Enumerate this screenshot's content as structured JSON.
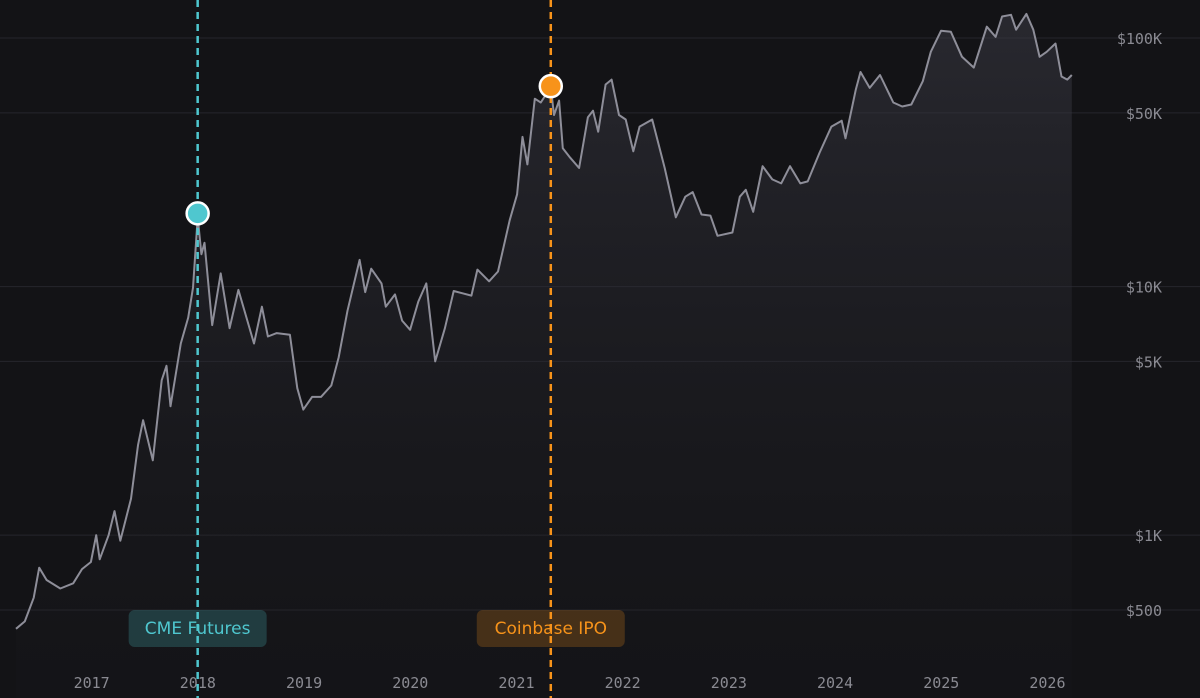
{
  "chart_data": {
    "type": "line",
    "title": "",
    "xlabel": "",
    "ylabel": "",
    "scale": "log",
    "grid": true,
    "ylim": [
      350,
      140000
    ],
    "xlim": [
      "2016-04",
      "2026-04"
    ],
    "x_ticks": [
      "2017",
      "2018",
      "2019",
      "2020",
      "2021",
      "2022",
      "2023",
      "2024",
      "2025",
      "2026"
    ],
    "y_ticks": [
      {
        "value": 500,
        "label": "$500"
      },
      {
        "value": 1000,
        "label": "$1K"
      },
      {
        "value": 5000,
        "label": "$5K"
      },
      {
        "value": 10000,
        "label": "$10K"
      },
      {
        "value": 50000,
        "label": "$50K"
      },
      {
        "value": 100000,
        "label": "$100K"
      }
    ],
    "series": [
      {
        "color": "#8e8e99",
        "points": [
          [
            "2016-04-01",
            420
          ],
          [
            "2016-05-01",
            450
          ],
          [
            "2016-06-01",
            560
          ],
          [
            "2016-06-20",
            740
          ],
          [
            "2016-07-15",
            660
          ],
          [
            "2016-09-01",
            610
          ],
          [
            "2016-10-15",
            640
          ],
          [
            "2016-11-15",
            730
          ],
          [
            "2016-12-15",
            780
          ],
          [
            "2017-01-03",
            1000
          ],
          [
            "2017-01-15",
            800
          ],
          [
            "2017-02-15",
            1000
          ],
          [
            "2017-03-05",
            1250
          ],
          [
            "2017-03-25",
            950
          ],
          [
            "2017-05-01",
            1400
          ],
          [
            "2017-05-25",
            2300
          ],
          [
            "2017-06-12",
            2900
          ],
          [
            "2017-07-15",
            2000
          ],
          [
            "2017-08-15",
            4200
          ],
          [
            "2017-09-01",
            4800
          ],
          [
            "2017-09-15",
            3300
          ],
          [
            "2017-10-20",
            5900
          ],
          [
            "2017-11-15",
            7500
          ],
          [
            "2017-12-01",
            9900
          ],
          [
            "2017-12-17",
            19000
          ],
          [
            "2017-12-30",
            13500
          ],
          [
            "2018-01-10",
            15000
          ],
          [
            "2018-02-06",
            7000
          ],
          [
            "2018-03-05",
            11300
          ],
          [
            "2018-04-05",
            6800
          ],
          [
            "2018-05-05",
            9700
          ],
          [
            "2018-06-28",
            5900
          ],
          [
            "2018-07-25",
            8300
          ],
          [
            "2018-08-15",
            6300
          ],
          [
            "2018-09-15",
            6500
          ],
          [
            "2018-10-30",
            6400
          ],
          [
            "2018-11-25",
            3900
          ],
          [
            "2018-12-15",
            3200
          ],
          [
            "2019-01-15",
            3600
          ],
          [
            "2019-02-15",
            3600
          ],
          [
            "2019-03-20",
            4000
          ],
          [
            "2019-04-15",
            5200
          ],
          [
            "2019-05-15",
            8000
          ],
          [
            "2019-06-26",
            12800
          ],
          [
            "2019-07-15",
            9500
          ],
          [
            "2019-08-05",
            11800
          ],
          [
            "2019-09-10",
            10300
          ],
          [
            "2019-09-25",
            8300
          ],
          [
            "2019-10-26",
            9300
          ],
          [
            "2019-11-20",
            7300
          ],
          [
            "2019-12-17",
            6700
          ],
          [
            "2020-01-15",
            8700
          ],
          [
            "2020-02-12",
            10300
          ],
          [
            "2020-03-12",
            5000
          ],
          [
            "2020-04-15",
            6800
          ],
          [
            "2020-05-15",
            9600
          ],
          [
            "2020-06-15",
            9400
          ],
          [
            "2020-07-15",
            9200
          ],
          [
            "2020-08-05",
            11700
          ],
          [
            "2020-09-15",
            10500
          ],
          [
            "2020-10-15",
            11500
          ],
          [
            "2020-11-25",
            18500
          ],
          [
            "2020-12-20",
            23500
          ],
          [
            "2021-01-08",
            40000
          ],
          [
            "2021-01-25",
            31000
          ],
          [
            "2021-02-20",
            57000
          ],
          [
            "2021-03-10",
            55000
          ],
          [
            "2021-04-14",
            63500
          ],
          [
            "2021-04-25",
            49000
          ],
          [
            "2021-05-12",
            56000
          ],
          [
            "2021-05-25",
            36000
          ],
          [
            "2021-06-20",
            33000
          ],
          [
            "2021-07-20",
            30000
          ],
          [
            "2021-08-20",
            48000
          ],
          [
            "2021-09-07",
            51000
          ],
          [
            "2021-09-25",
            42000
          ],
          [
            "2021-10-20",
            65000
          ],
          [
            "2021-11-10",
            68000
          ],
          [
            "2021-12-05",
            49000
          ],
          [
            "2021-12-28",
            47000
          ],
          [
            "2022-01-24",
            35000
          ],
          [
            "2022-02-15",
            44000
          ],
          [
            "2022-03-28",
            47000
          ],
          [
            "2022-05-10",
            30000
          ],
          [
            "2022-06-18",
            19000
          ],
          [
            "2022-07-20",
            23000
          ],
          [
            "2022-08-15",
            24000
          ],
          [
            "2022-09-15",
            19500
          ],
          [
            "2022-10-15",
            19300
          ],
          [
            "2022-11-09",
            16000
          ],
          [
            "2022-12-30",
            16500
          ],
          [
            "2023-01-25",
            23000
          ],
          [
            "2023-02-15",
            24500
          ],
          [
            "2023-03-10",
            20000
          ],
          [
            "2023-04-12",
            30500
          ],
          [
            "2023-05-15",
            27000
          ],
          [
            "2023-06-15",
            26000
          ],
          [
            "2023-07-15",
            30500
          ],
          [
            "2023-08-20",
            26000
          ],
          [
            "2023-09-15",
            26500
          ],
          [
            "2023-10-25",
            34500
          ],
          [
            "2023-12-05",
            44000
          ],
          [
            "2024-01-10",
            46500
          ],
          [
            "2024-01-23",
            39500
          ],
          [
            "2024-02-28",
            62000
          ],
          [
            "2024-03-14",
            73000
          ],
          [
            "2024-04-15",
            63000
          ],
          [
            "2024-05-20",
            71000
          ],
          [
            "2024-07-05",
            55000
          ],
          [
            "2024-08-05",
            53000
          ],
          [
            "2024-09-06",
            54000
          ],
          [
            "2024-10-15",
            67000
          ],
          [
            "2024-11-12",
            88000
          ],
          [
            "2024-12-17",
            107000
          ],
          [
            "2025-01-20",
            106000
          ],
          [
            "2025-02-28",
            84000
          ],
          [
            "2025-04-08",
            76000
          ],
          [
            "2025-05-22",
            111000
          ],
          [
            "2025-06-22",
            101000
          ],
          [
            "2025-07-14",
            122000
          ],
          [
            "2025-08-14",
            124000
          ],
          [
            "2025-09-01",
            108000
          ],
          [
            "2025-10-06",
            125000
          ],
          [
            "2025-10-30",
            108000
          ],
          [
            "2025-11-21",
            84000
          ],
          [
            "2025-12-15",
            88000
          ],
          [
            "2026-01-15",
            95000
          ],
          [
            "2026-02-05",
            70000
          ],
          [
            "2026-02-25",
            68000
          ],
          [
            "2026-03-10",
            71000
          ]
        ]
      }
    ],
    "events": [
      {
        "label": "CME Futures",
        "date": "2017-12-17",
        "value": 19700,
        "color": "#4fc7cf"
      },
      {
        "label": "Coinbase IPO",
        "date": "2021-04-14",
        "value": 64000,
        "color": "#f7931a"
      }
    ]
  }
}
